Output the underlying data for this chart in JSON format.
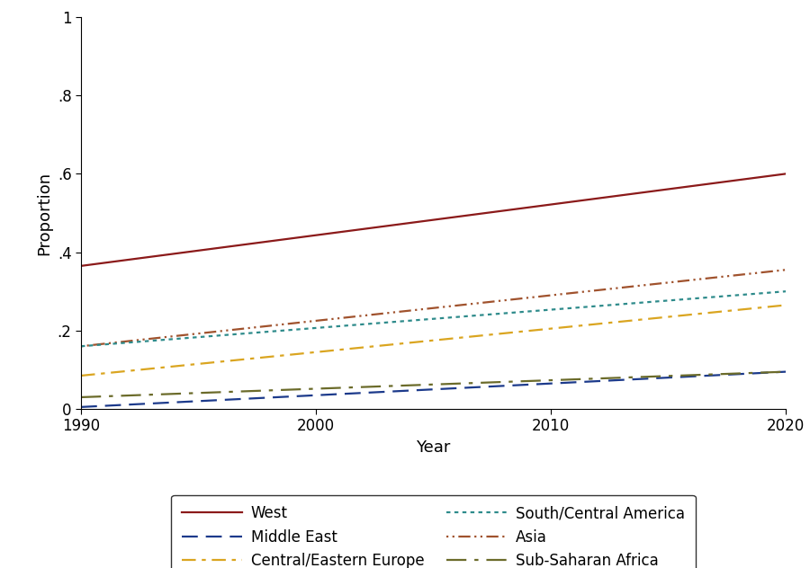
{
  "xlabel": "Year",
  "ylabel": "Proportion",
  "xlim": [
    1990,
    2020
  ],
  "ylim": [
    0,
    1
  ],
  "yticks": [
    0,
    0.2,
    0.4,
    0.6,
    0.8,
    1.0
  ],
  "ytick_labels": [
    "0",
    ".2",
    ".4",
    ".6",
    ".8",
    "1"
  ],
  "xticks": [
    1990,
    2000,
    2010,
    2020
  ],
  "years": [
    1990,
    2020
  ],
  "series": [
    {
      "name": "West",
      "y": [
        0.365,
        0.6
      ],
      "color": "#8B1A1A",
      "linestyle": "solid",
      "linewidth": 1.6,
      "dashes": null
    },
    {
      "name": "Central/Eastern Europe",
      "y": [
        0.085,
        0.265
      ],
      "color": "#DAA520",
      "linestyle": "dashdot",
      "linewidth": 1.6,
      "dashes": [
        7,
        3,
        2,
        3
      ]
    },
    {
      "name": "Asia",
      "y": [
        0.16,
        0.355
      ],
      "color": "#A0522D",
      "linestyle": "dotted",
      "linewidth": 1.6,
      "dashes": [
        1,
        2,
        1,
        2,
        6,
        2
      ]
    },
    {
      "name": "Middle East",
      "y": [
        0.005,
        0.095
      ],
      "color": "#1C3A8B",
      "linestyle": "dashed",
      "linewidth": 1.6,
      "dashes": [
        8,
        4
      ]
    },
    {
      "name": "South/Central America",
      "y": [
        0.16,
        0.3
      ],
      "color": "#2E8B8B",
      "linestyle": "dotted",
      "linewidth": 1.6,
      "dashes": [
        2,
        2
      ]
    },
    {
      "name": "Sub-Saharan Africa",
      "y": [
        0.03,
        0.095
      ],
      "color": "#6B6B2A",
      "linestyle": "dashed",
      "linewidth": 1.6,
      "dashes": [
        10,
        4,
        2,
        4
      ]
    }
  ],
  "legend_order": [
    "West",
    "Middle East",
    "Central/Eastern Europe",
    "South/Central America",
    "Asia",
    "Sub-Saharan Africa"
  ],
  "font_size": 12
}
